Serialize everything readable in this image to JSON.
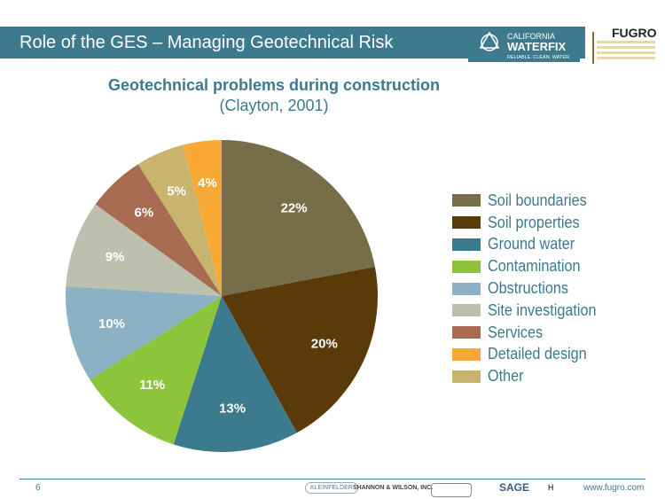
{
  "slide": {
    "title": "Role of the GES – Managing Geotechnical Risk",
    "page_number": "6",
    "footer_url": "www.fugro.com"
  },
  "logos": {
    "waterfix_line1": "CALIFORNIA",
    "waterfix_line2": "WATERFIX",
    "waterfix_tagline": "RELIABLE. CLEAN. WATER.",
    "fugro": "FUGRO"
  },
  "partners": [
    "KLEINFELDER",
    "SHANNON & WILSON, INC.",
    "",
    "SAGE",
    "H"
  ],
  "colors": {
    "header": "#3d7a8e",
    "text_accent": "#3d7a8e"
  },
  "chart_data": {
    "type": "pie",
    "title": "Geotechnical problems during construction",
    "subtitle": "(Clayton, 2001)",
    "start_angle_deg": 0,
    "direction": "clockwise",
    "legend_position": "right",
    "slices": [
      {
        "label": "Soil boundaries",
        "value": 22,
        "display": "22%",
        "color": "#766e48"
      },
      {
        "label": "Soil properties",
        "value": 20,
        "display": "20%",
        "color": "#5a3a08"
      },
      {
        "label": "Ground water",
        "value": 13,
        "display": "13%",
        "color": "#3c7a8e"
      },
      {
        "label": "Contamination",
        "value": 11,
        "display": "11%",
        "color": "#8cc43c"
      },
      {
        "label": "Obstructions",
        "value": 10,
        "display": "10%",
        "color": "#8cb0c4"
      },
      {
        "label": "Site investigation",
        "value": 9,
        "display": "9%",
        "color": "#bec0ae"
      },
      {
        "label": "Services",
        "value": 6,
        "display": "6%",
        "color": "#a86c52"
      },
      {
        "label": "Detailed design",
        "value": 4,
        "display": "4%",
        "color": "#f8a834"
      },
      {
        "label": "Other",
        "value": 5,
        "display": "5%",
        "color": "#c8b46c"
      }
    ],
    "slice_order": [
      0,
      1,
      2,
      3,
      4,
      5,
      6,
      8,
      7
    ]
  }
}
